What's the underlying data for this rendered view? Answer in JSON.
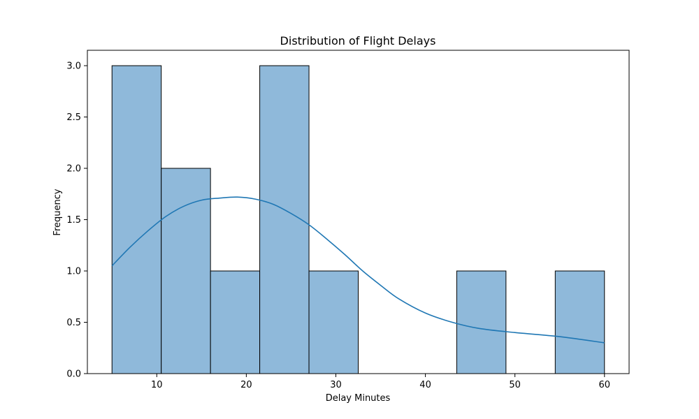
{
  "chart_data": {
    "type": "bar",
    "title": "Distribution of Flight Delays",
    "xlabel": "Delay Minutes",
    "ylabel": "Frequency",
    "xlim": [
      2.25,
      62.75
    ],
    "ylim": [
      0,
      3.15
    ],
    "x_ticks": [
      10,
      20,
      30,
      40,
      50,
      60
    ],
    "y_ticks": [
      0.0,
      0.5,
      1.0,
      1.5,
      2.0,
      2.5,
      3.0
    ],
    "x_tick_labels": [
      "10",
      "20",
      "30",
      "40",
      "50",
      "60"
    ],
    "y_tick_labels": [
      "0.0",
      "0.5",
      "1.0",
      "1.5",
      "2.0",
      "2.5",
      "3.0"
    ],
    "bins": [
      {
        "start": 5.0,
        "end": 10.5,
        "count": 3
      },
      {
        "start": 10.5,
        "end": 16.0,
        "count": 2
      },
      {
        "start": 16.0,
        "end": 21.5,
        "count": 1
      },
      {
        "start": 21.5,
        "end": 27.0,
        "count": 3
      },
      {
        "start": 27.0,
        "end": 32.5,
        "count": 1
      },
      {
        "start": 32.5,
        "end": 38.0,
        "count": 0
      },
      {
        "start": 38.0,
        "end": 43.5,
        "count": 0
      },
      {
        "start": 43.5,
        "end": 49.0,
        "count": 1
      },
      {
        "start": 49.0,
        "end": 54.5,
        "count": 0
      },
      {
        "start": 54.5,
        "end": 60.0,
        "count": 1
      }
    ],
    "kde": {
      "x": [
        5,
        7,
        9,
        11,
        13,
        15,
        17,
        19,
        21,
        23,
        25,
        27,
        29,
        31,
        33,
        35,
        37,
        40,
        43,
        46,
        50,
        55,
        60
      ],
      "y": [
        1.05,
        1.23,
        1.39,
        1.53,
        1.63,
        1.69,
        1.71,
        1.72,
        1.7,
        1.65,
        1.56,
        1.45,
        1.31,
        1.16,
        1.0,
        0.86,
        0.73,
        0.59,
        0.5,
        0.44,
        0.4,
        0.36,
        0.3
      ]
    },
    "grid": false,
    "colors": {
      "bar_fill": "#8fb9da",
      "bar_edge": "#000000",
      "kde_line": "#1f77b4"
    }
  }
}
